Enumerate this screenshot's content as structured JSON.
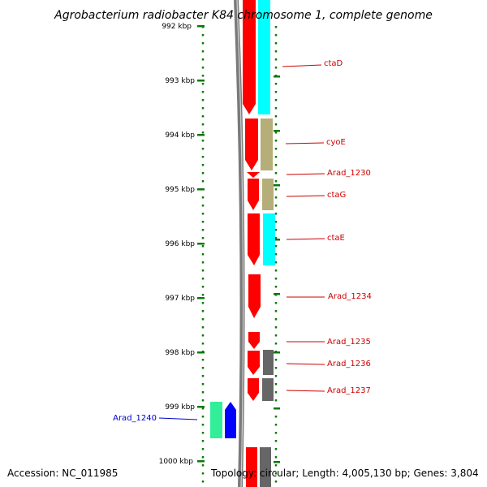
{
  "title": "Agrobacterium radiobacter K84 chromosome 1, complete genome",
  "ruler": [
    "992 kbp",
    "993 kbp",
    "994 kbp",
    "995 kbp",
    "996 kbp",
    "997 kbp",
    "998 kbp",
    "999 kbp",
    "1000 kbp"
  ],
  "genes": [
    {
      "name": "ctaD",
      "color": "#cc0000"
    },
    {
      "name": "cyoE",
      "color": "#cc0000"
    },
    {
      "name": "Arad_1230",
      "color": "#cc0000"
    },
    {
      "name": "ctaG",
      "color": "#cc0000"
    },
    {
      "name": "ctaE",
      "color": "#cc0000"
    },
    {
      "name": "Arad_1234",
      "color": "#cc0000"
    },
    {
      "name": "Arad_1235",
      "color": "#cc0000"
    },
    {
      "name": "Arad_1236",
      "color": "#cc0000"
    },
    {
      "name": "Arad_1237",
      "color": "#cc0000"
    },
    {
      "name": "Arad_1240",
      "color": "#0000cc"
    }
  ],
  "footer": {
    "accession": "Accession: NC_011985",
    "topology": "Topology: circular; Length: 4,005,130 bp; Genes: 3,804"
  },
  "colors": {
    "forward_cds": "#ff0000",
    "reverse_cds": "#0000ff",
    "cog_cyan": "#00ffff",
    "cog_khaki": "#b5ae78",
    "cog_gray": "#666666",
    "cog_green": "#33ee99",
    "backbone": "#808080",
    "ticks": "#006600"
  }
}
